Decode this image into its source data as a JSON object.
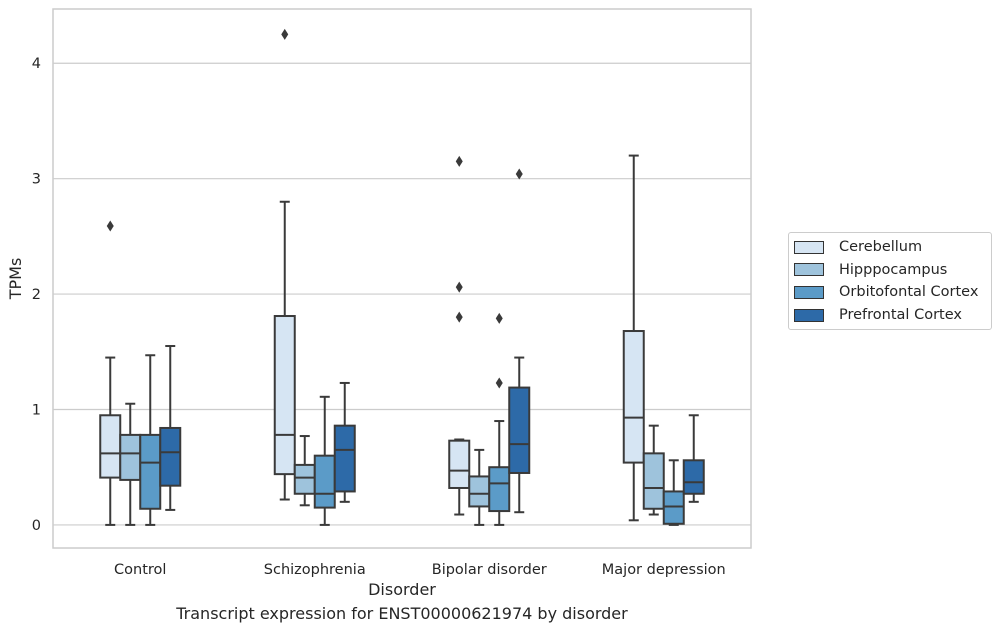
{
  "chart_data": {
    "type": "boxplot",
    "xlabel": "Disorder",
    "ylabel": "TPMs",
    "ylim": [
      -0.2,
      4.47
    ],
    "yticks": [
      0,
      1,
      2,
      3,
      4
    ],
    "grid": "horizontal",
    "legend_placement": "right",
    "categories": [
      "Control",
      "Schizophrenia",
      "Bipolar disorder",
      "Major depression"
    ],
    "series": [
      {
        "name": "Cerebellum",
        "color": "#d6e5f3",
        "boxes": [
          {
            "whislo": 0.0,
            "q1": 0.41,
            "med": 0.62,
            "q3": 0.95,
            "whishi": 1.45,
            "fliers": [
              2.59
            ]
          },
          {
            "whislo": 0.22,
            "q1": 0.44,
            "med": 0.78,
            "q3": 1.81,
            "whishi": 2.8,
            "fliers": [
              4.25
            ]
          },
          {
            "whislo": 0.09,
            "q1": 0.32,
            "med": 0.47,
            "q3": 0.73,
            "whishi": 0.74,
            "fliers": [
              1.8,
              2.06,
              3.15
            ]
          },
          {
            "whislo": 0.04,
            "q1": 0.54,
            "med": 0.93,
            "q3": 1.68,
            "whishi": 3.2,
            "fliers": []
          }
        ]
      },
      {
        "name": "Hipppocampus",
        "color": "#9ec3dc",
        "boxes": [
          {
            "whislo": 0.0,
            "q1": 0.39,
            "med": 0.62,
            "q3": 0.78,
            "whishi": 1.05,
            "fliers": []
          },
          {
            "whislo": 0.17,
            "q1": 0.27,
            "med": 0.41,
            "q3": 0.52,
            "whishi": 0.77,
            "fliers": []
          },
          {
            "whislo": 0.0,
            "q1": 0.16,
            "med": 0.27,
            "q3": 0.42,
            "whishi": 0.65,
            "fliers": []
          },
          {
            "whislo": 0.09,
            "q1": 0.14,
            "med": 0.32,
            "q3": 0.62,
            "whishi": 0.86,
            "fliers": []
          }
        ]
      },
      {
        "name": "Orbitofontal Cortex",
        "color": "#5b9bc8",
        "boxes": [
          {
            "whislo": 0.0,
            "q1": 0.14,
            "med": 0.54,
            "q3": 0.78,
            "whishi": 1.47,
            "fliers": []
          },
          {
            "whislo": 0.0,
            "q1": 0.15,
            "med": 0.27,
            "q3": 0.6,
            "whishi": 1.11,
            "fliers": []
          },
          {
            "whislo": 0.0,
            "q1": 0.12,
            "med": 0.36,
            "q3": 0.5,
            "whishi": 0.9,
            "fliers": [
              1.23,
              1.79
            ]
          },
          {
            "whislo": 0.0,
            "q1": 0.01,
            "med": 0.16,
            "q3": 0.29,
            "whishi": 0.56,
            "fliers": []
          }
        ]
      },
      {
        "name": "Prefrontal Cortex",
        "color": "#2d6aa8",
        "boxes": [
          {
            "whislo": 0.13,
            "q1": 0.34,
            "med": 0.63,
            "q3": 0.84,
            "whishi": 1.55,
            "fliers": []
          },
          {
            "whislo": 0.2,
            "q1": 0.29,
            "med": 0.65,
            "q3": 0.86,
            "whishi": 1.23,
            "fliers": []
          },
          {
            "whislo": 0.11,
            "q1": 0.45,
            "med": 0.7,
            "q3": 1.19,
            "whishi": 1.45,
            "fliers": [
              3.04
            ]
          },
          {
            "whislo": 0.2,
            "q1": 0.27,
            "med": 0.37,
            "q3": 0.56,
            "whishi": 0.95,
            "fliers": []
          }
        ]
      }
    ]
  },
  "caption": "Transcript expression for ENST00000621974 by disorder"
}
